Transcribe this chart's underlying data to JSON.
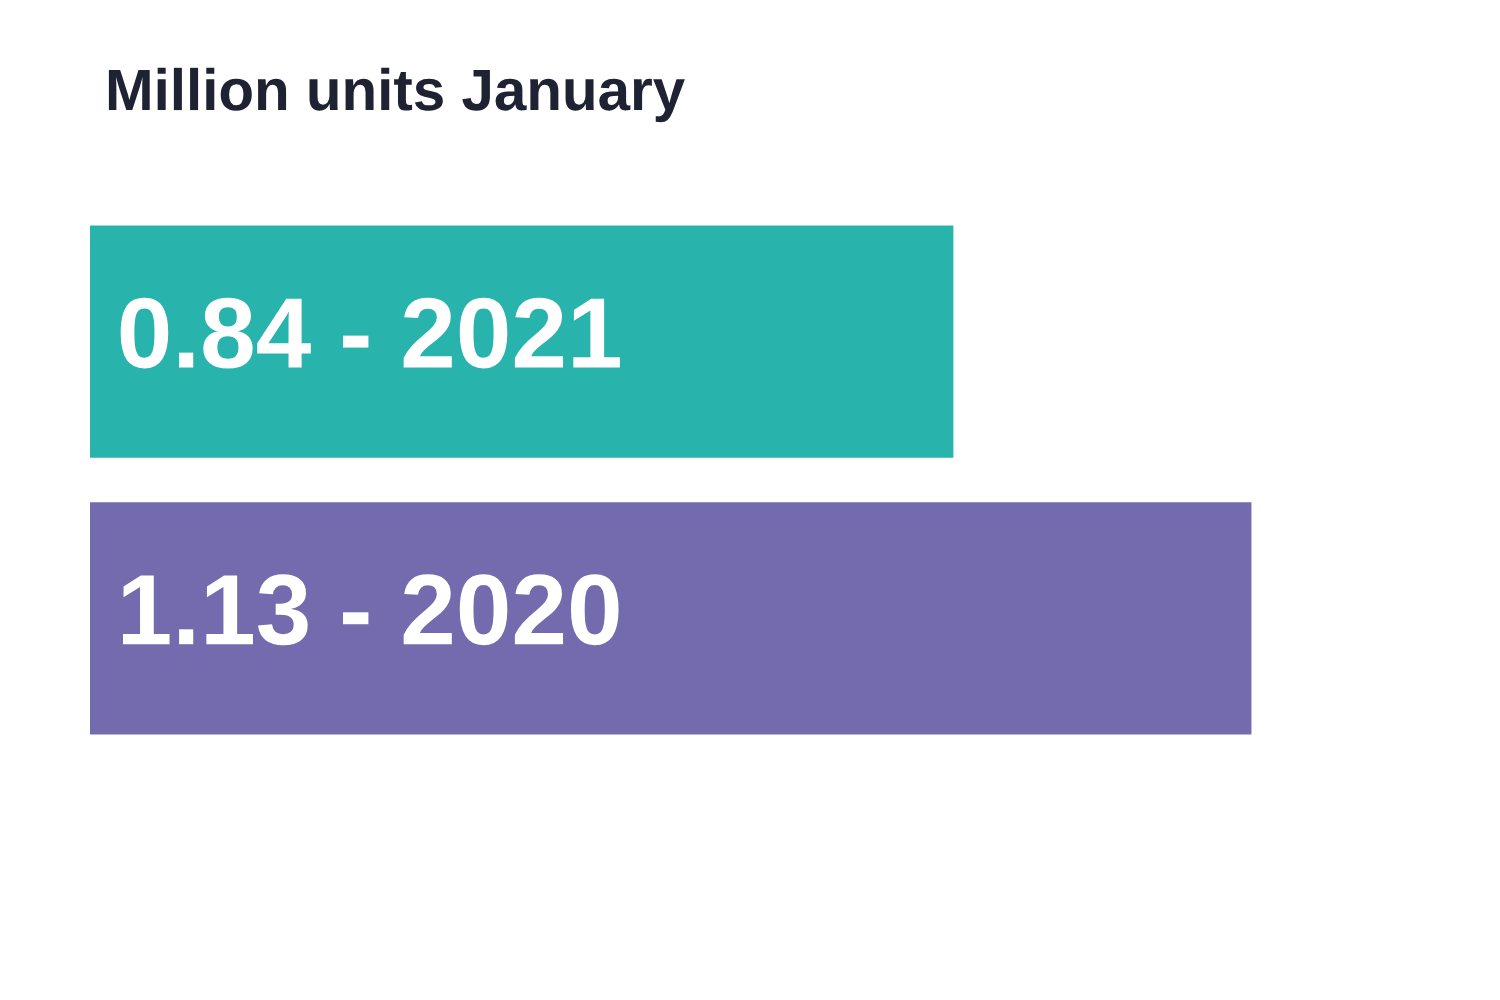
{
  "chart_data": {
    "type": "bar",
    "orientation": "horizontal",
    "title": "Million units January",
    "categories": [
      null,
      null
    ],
    "values": [
      0.84,
      1.13
    ],
    "colors": [
      "#29b3ad",
      "#736bad"
    ],
    "value_labels": [
      "0.84 - 2021",
      "1.13 - 2020"
    ],
    "tick_labels": false,
    "grid": false,
    "legend": false
  }
}
